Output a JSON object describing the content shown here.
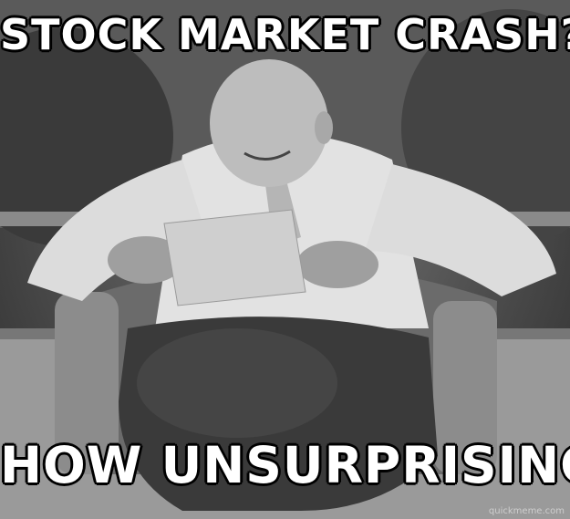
{
  "meme": {
    "top_text": "STOCK MARKET CRASH?",
    "bottom_text": "HOW UNSURPRISING",
    "watermark": "quickmeme.com"
  },
  "photo": {
    "style": "black-and-white photograph",
    "subject": "elderly man seated in a wicker chair outdoors, smiling and reading a letter",
    "colors": {
      "text": "#ffffff",
      "outline": "#000000"
    }
  }
}
